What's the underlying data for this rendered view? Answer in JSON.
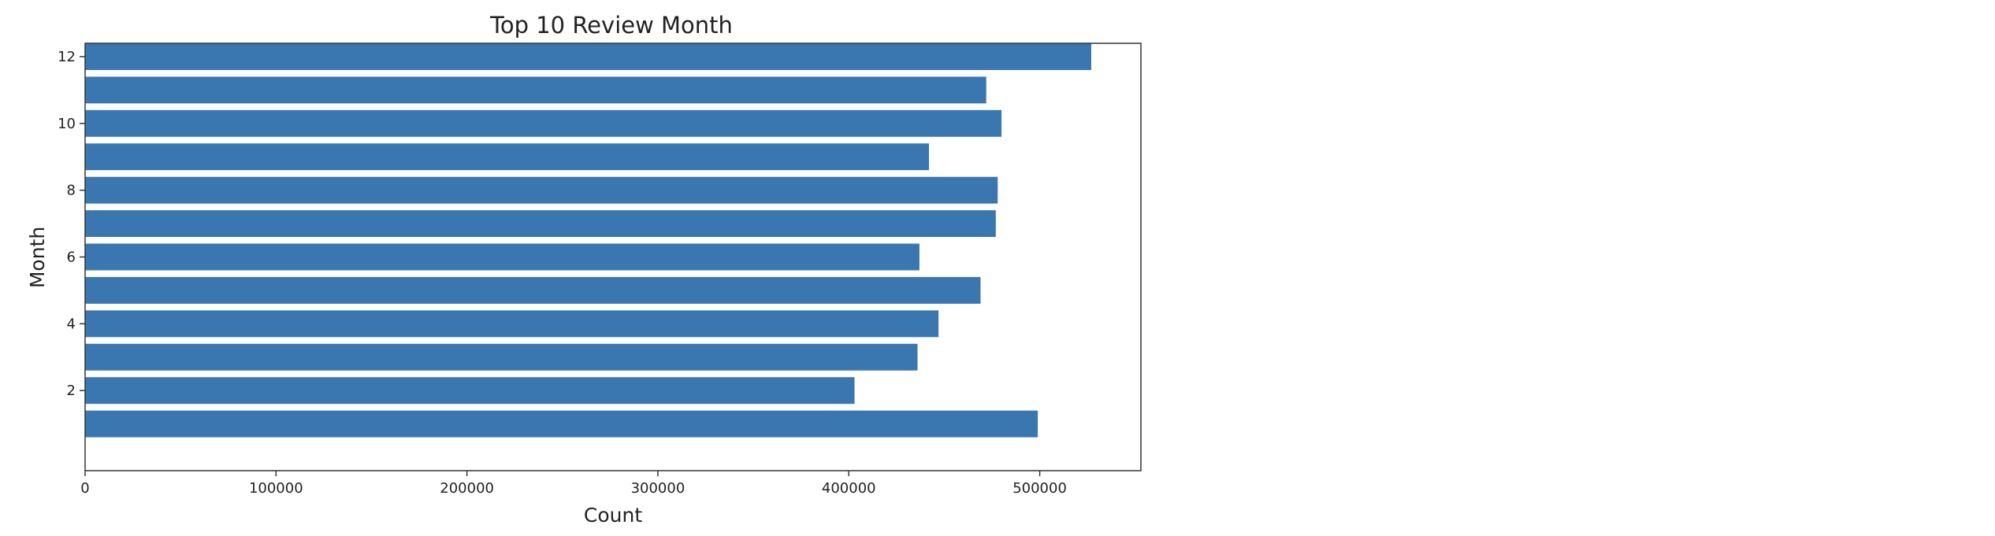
{
  "chart_data": {
    "type": "bar",
    "orientation": "horizontal",
    "title": "Top 10 Review Month",
    "xlabel": "Count",
    "ylabel": "Month",
    "categories": [
      1,
      2,
      3,
      4,
      5,
      6,
      7,
      8,
      9,
      10,
      11,
      12
    ],
    "values": [
      499000,
      403000,
      436000,
      447000,
      469000,
      437000,
      477000,
      478000,
      442000,
      480000,
      472000,
      527000
    ],
    "xlim": [
      0,
      553000
    ],
    "ylim": [
      -0.4,
      12.4
    ],
    "x_ticks": [
      0,
      100000,
      200000,
      300000,
      400000,
      500000
    ],
    "y_ticks": [
      2,
      4,
      6,
      8,
      10,
      12
    ],
    "grid": false,
    "bar_color": "#3a77b0"
  }
}
